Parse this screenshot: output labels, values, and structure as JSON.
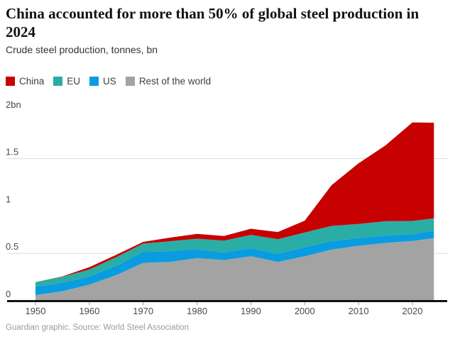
{
  "header": {
    "title": "China accounted for more than 50% of global steel production in 2024",
    "subtitle": "Crude steel production, tonnes, bn"
  },
  "legend": [
    {
      "label": "China",
      "color": "#c70000"
    },
    {
      "label": "EU",
      "color": "#2aada5"
    },
    {
      "label": "US",
      "color": "#0a9ce0"
    },
    {
      "label": "Rest of the world",
      "color": "#a3a3a3"
    }
  ],
  "footer": {
    "credit": "Guardian graphic. Source: World Steel Association"
  },
  "chart_data": {
    "type": "area",
    "stacked": true,
    "title": "China accounted for more than 50% of global steel production in 2024",
    "subtitle": "Crude steel production, tonnes, bn",
    "unit": "tonnes, bn",
    "x": [
      1950,
      1955,
      1960,
      1965,
      1970,
      1975,
      1980,
      1985,
      1990,
      1995,
      2000,
      2005,
      2010,
      2015,
      2020,
      2024
    ],
    "series": [
      {
        "name": "Rest of the world",
        "color": "#a3a3a3",
        "values": [
          0.06,
          0.1,
          0.17,
          0.27,
          0.4,
          0.41,
          0.45,
          0.43,
          0.47,
          0.41,
          0.47,
          0.54,
          0.58,
          0.61,
          0.63,
          0.66
        ]
      },
      {
        "name": "US",
        "color": "#0a9ce0",
        "values": [
          0.088,
          0.09,
          0.085,
          0.1,
          0.115,
          0.113,
          0.095,
          0.08,
          0.085,
          0.085,
          0.095,
          0.09,
          0.08,
          0.079,
          0.072,
          0.079
        ]
      },
      {
        "name": "EU",
        "color": "#2aada5",
        "values": [
          0.048,
          0.062,
          0.075,
          0.09,
          0.088,
          0.105,
          0.11,
          0.125,
          0.14,
          0.155,
          0.155,
          0.16,
          0.15,
          0.15,
          0.14,
          0.13
        ]
      },
      {
        "name": "China",
        "color": "#c70000",
        "values": [
          0.001,
          0.005,
          0.025,
          0.024,
          0.018,
          0.038,
          0.05,
          0.048,
          0.065,
          0.075,
          0.125,
          0.43,
          0.64,
          0.8,
          1.04,
          1.01
        ]
      }
    ],
    "stack_order_bottom_to_top": [
      "Rest of the world",
      "US",
      "EU",
      "China"
    ],
    "ylim": [
      0,
      2
    ],
    "yticks": [
      {
        "value": 0,
        "label": "0"
      },
      {
        "value": 0.5,
        "label": "0.5"
      },
      {
        "value": 1,
        "label": "1"
      },
      {
        "value": 1.5,
        "label": "1.5"
      },
      {
        "value": 2,
        "label": "2bn"
      }
    ],
    "gridlines": [
      0.5,
      1.5
    ],
    "xticks": [
      1950,
      1960,
      1970,
      1980,
      1990,
      2000,
      2010,
      2020
    ],
    "legend_position": "top",
    "colors": {
      "axis_line": "#121212",
      "gridline": "#dcdcdc",
      "tick": "#9e9e9e",
      "axis_label": "#494949"
    }
  }
}
